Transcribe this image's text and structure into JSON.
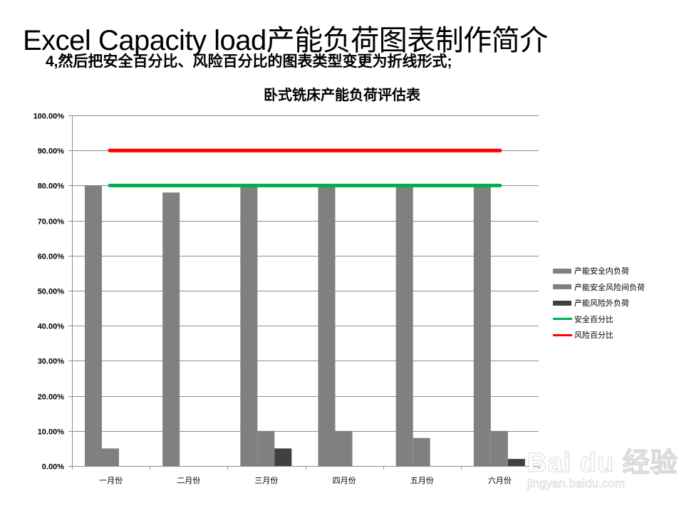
{
  "slide": {
    "title": "Excel Capacity load产能负荷图表制作简介",
    "subtitle": "4,然后把安全百分比、风险百分比的图表类型变更为折线形式;"
  },
  "watermark": {
    "main": "Bai du 经验",
    "url": "jingyan.baidu.com"
  },
  "chart_data": {
    "type": "bar",
    "title": "卧式铣床产能负荷评估表",
    "xlabel": "",
    "ylabel": "",
    "categories": [
      "一月份",
      "二月份",
      "三月份",
      "四月份",
      "五月份",
      "六月份"
    ],
    "ylim": [
      0,
      100
    ],
    "yticks": [
      "0.00%",
      "10.00%",
      "20.00%",
      "30.00%",
      "40.00%",
      "50.00%",
      "60.00%",
      "70.00%",
      "80.00%",
      "90.00%",
      "100.00%"
    ],
    "grid": true,
    "legend_position": "right",
    "series": [
      {
        "name": "产能安全内负荷",
        "kind": "bar",
        "color": "#808080",
        "values": [
          80,
          78,
          80,
          80,
          80,
          80
        ]
      },
      {
        "name": "产能安全风险间负荷",
        "kind": "bar",
        "color": "#808080",
        "values": [
          5,
          0,
          10,
          10,
          8,
          10
        ]
      },
      {
        "name": "产能风险外负荷",
        "kind": "bar",
        "color": "#404040",
        "values": [
          0,
          0,
          5,
          0,
          0,
          2
        ]
      },
      {
        "name": "安全百分比",
        "kind": "line",
        "color": "#00b050",
        "values": [
          80,
          80,
          80,
          80,
          80,
          80
        ]
      },
      {
        "name": "风险百分比",
        "kind": "line",
        "color": "#ff0000",
        "values": [
          90,
          90,
          90,
          90,
          90,
          90
        ]
      }
    ]
  }
}
